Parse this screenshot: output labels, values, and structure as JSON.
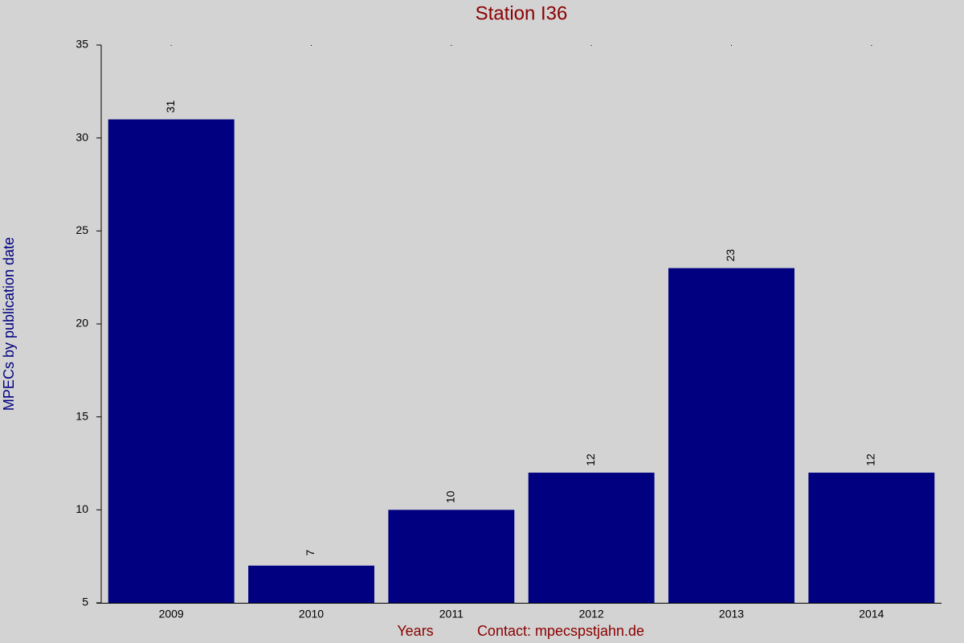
{
  "chart_data": {
    "type": "bar",
    "title": "Station I36",
    "categories": [
      "2009",
      "2010",
      "2011",
      "2012",
      "2013",
      "2014"
    ],
    "values": [
      31,
      7,
      10,
      12,
      23,
      12
    ],
    "color": "#000080",
    "ylim": [
      5,
      35
    ],
    "yticks": [
      5,
      10,
      15,
      20,
      25,
      30,
      35
    ],
    "ylabel": "MPECs by publication date",
    "xlabel": "Years",
    "annotation": "Contact: mpecspstjahn.de",
    "grid": false
  }
}
